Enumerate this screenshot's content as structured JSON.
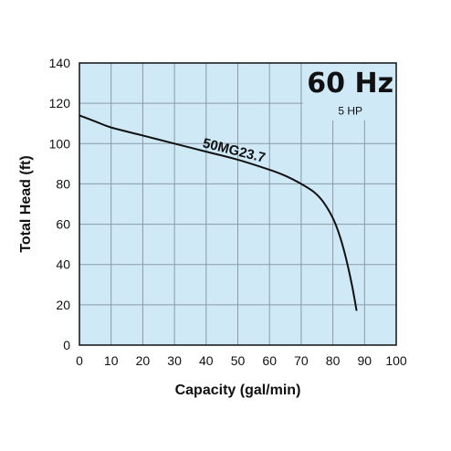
{
  "chart_data": {
    "type": "line",
    "title": "60 Hz",
    "subtitle": "5 HP",
    "xlabel": "Capacity (gal/min)",
    "ylabel": "Total Head (ft)",
    "xlim": [
      0,
      100
    ],
    "ylim": [
      0,
      140
    ],
    "x_ticks": [
      "0",
      "10",
      "20",
      "30",
      "40",
      "50",
      "60",
      "70",
      "80",
      "90",
      "100"
    ],
    "y_ticks": [
      "0",
      "20",
      "40",
      "60",
      "80",
      "100",
      "120",
      "140"
    ],
    "grid": true,
    "background_color": "#cfe9f7",
    "grid_color": "#8a9aa6",
    "line_color": "#111111",
    "series": [
      {
        "name": "50MG23.7",
        "x": [
          0,
          5,
          10,
          20,
          30,
          40,
          50,
          60,
          65,
          70,
          74,
          77,
          80,
          82,
          84,
          86,
          87.5
        ],
        "y": [
          114,
          111,
          108,
          104,
          100,
          96,
          92,
          87,
          84,
          80,
          76,
          71,
          63,
          55,
          44,
          30,
          17
        ]
      }
    ]
  }
}
